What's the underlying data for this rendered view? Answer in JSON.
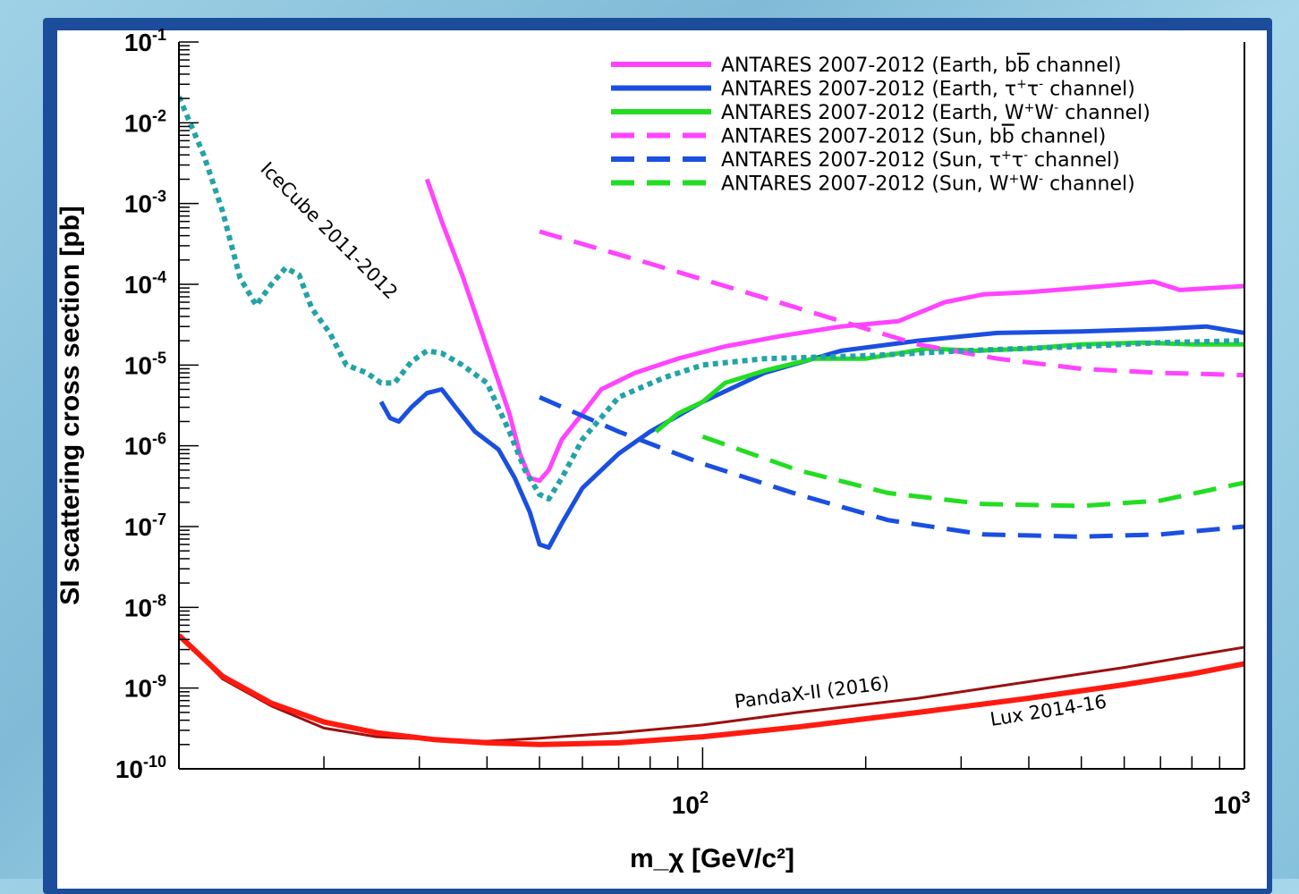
{
  "chart_data": {
    "type": "line",
    "title": "",
    "xlabel": "m_χ [GeV/c²]",
    "ylabel": "SI scattering cross section [pb]",
    "xscale": "log",
    "yscale": "log",
    "xlim": [
      10.8,
      1000
    ],
    "ylim": [
      1e-10,
      0.1
    ],
    "x_tick_labels": [
      {
        "value": 100,
        "base": "10",
        "exp": "2"
      },
      {
        "value": 1000,
        "base": "10",
        "exp": "3"
      }
    ],
    "y_tick_labels": [
      {
        "value": 0.1,
        "base": "10",
        "exp": "-1"
      },
      {
        "value": 0.01,
        "base": "10",
        "exp": "-2"
      },
      {
        "value": 0.001,
        "base": "10",
        "exp": "-3"
      },
      {
        "value": 0.0001,
        "base": "10",
        "exp": "-4"
      },
      {
        "value": 1e-05,
        "base": "10",
        "exp": "-5"
      },
      {
        "value": 1e-06,
        "base": "10",
        "exp": "-6"
      },
      {
        "value": 1e-07,
        "base": "10",
        "exp": "-7"
      },
      {
        "value": 1e-08,
        "base": "10",
        "exp": "-8"
      },
      {
        "value": 1e-09,
        "base": "10",
        "exp": "-9"
      },
      {
        "value": 1e-10,
        "base": "10",
        "exp": "-10"
      }
    ],
    "legend_position": "top-right",
    "grid": false,
    "series": [
      {
        "name": "ANTARES 2007-2012 (Earth, bb̄ channel)",
        "color": "#ff44ff",
        "dash": "solid",
        "width": 5,
        "legend": true,
        "points": [
          [
            31,
            0.002
          ],
          [
            33,
            0.0006
          ],
          [
            36,
            0.00013
          ],
          [
            38.5,
            3.5e-05
          ],
          [
            41,
            1e-05
          ],
          [
            44,
            2.5e-06
          ],
          [
            46,
            8e-07
          ],
          [
            48,
            4e-07
          ],
          [
            50,
            3.7e-07
          ],
          [
            52,
            5e-07
          ],
          [
            55,
            1.2e-06
          ],
          [
            60,
            2.5e-06
          ],
          [
            65,
            5e-06
          ],
          [
            75,
            8e-06
          ],
          [
            90,
            1.2e-05
          ],
          [
            110,
            1.7e-05
          ],
          [
            140,
            2.3e-05
          ],
          [
            180,
            3e-05
          ],
          [
            230,
            3.5e-05
          ],
          [
            280,
            6e-05
          ],
          [
            330,
            7.5e-05
          ],
          [
            400,
            8e-05
          ],
          [
            500,
            9e-05
          ],
          [
            600,
            0.0001
          ],
          [
            680,
            0.000108
          ],
          [
            760,
            8.5e-05
          ],
          [
            1000,
            9.5e-05
          ]
        ]
      },
      {
        "name": "ANTARES 2007-2012 (Earth, τ⁺τ⁻ channel)",
        "color": "#1a4fe0",
        "dash": "solid",
        "width": 5,
        "legend": true,
        "points": [
          [
            25.5,
            3.5e-06
          ],
          [
            26.5,
            2.2e-06
          ],
          [
            27.5,
            2e-06
          ],
          [
            29,
            3e-06
          ],
          [
            31,
            4.5e-06
          ],
          [
            33,
            5e-06
          ],
          [
            35,
            3e-06
          ],
          [
            38,
            1.5e-06
          ],
          [
            42,
            9e-07
          ],
          [
            45,
            4e-07
          ],
          [
            48,
            1.5e-07
          ],
          [
            50,
            6e-08
          ],
          [
            52,
            5.5e-08
          ],
          [
            55,
            1.1e-07
          ],
          [
            60,
            3e-07
          ],
          [
            70,
            8e-07
          ],
          [
            80,
            1.5e-06
          ],
          [
            100,
            3.5e-06
          ],
          [
            130,
            8e-06
          ],
          [
            180,
            1.5e-05
          ],
          [
            250,
            2e-05
          ],
          [
            350,
            2.5e-05
          ],
          [
            500,
            2.6e-05
          ],
          [
            700,
            2.8e-05
          ],
          [
            850,
            3e-05
          ],
          [
            1000,
            2.5e-05
          ]
        ]
      },
      {
        "name": "ANTARES 2007-2012 (Earth, W⁺W⁻ channel)",
        "color": "#22dd22",
        "dash": "solid",
        "width": 5,
        "legend": true,
        "points": [
          [
            82,
            1.5e-06
          ],
          [
            90,
            2.5e-06
          ],
          [
            100,
            3.5e-06
          ],
          [
            110,
            6e-06
          ],
          [
            130,
            8.5e-06
          ],
          [
            160,
            1.2e-05
          ],
          [
            200,
            1.2e-05
          ],
          [
            260,
            1.6e-05
          ],
          [
            320,
            1.5e-05
          ],
          [
            400,
            1.6e-05
          ],
          [
            500,
            1.8e-05
          ],
          [
            650,
            1.9e-05
          ],
          [
            800,
            1.8e-05
          ],
          [
            1000,
            1.8e-05
          ]
        ]
      },
      {
        "name": "ANTARES 2007-2012 (Sun, bb̄ channel)",
        "color": "#ff44ff",
        "dash": "dashed",
        "width": 5,
        "legend": true,
        "points": [
          [
            50,
            0.00045
          ],
          [
            80,
            0.00018
          ],
          [
            120,
            8e-05
          ],
          [
            180,
            3.5e-05
          ],
          [
            250,
            1.8e-05
          ],
          [
            350,
            1.2e-05
          ],
          [
            500,
            9e-06
          ],
          [
            700,
            8e-06
          ],
          [
            1000,
            7.5e-06
          ]
        ]
      },
      {
        "name": "ANTARES 2007-2012 (Sun, τ⁺τ⁻ channel)",
        "color": "#1a4fe0",
        "dash": "dashed",
        "width": 5,
        "legend": true,
        "points": [
          [
            50,
            4e-06
          ],
          [
            70,
            1.5e-06
          ],
          [
            100,
            6e-07
          ],
          [
            150,
            2.5e-07
          ],
          [
            220,
            1.2e-07
          ],
          [
            330,
            8e-08
          ],
          [
            500,
            7.5e-08
          ],
          [
            700,
            8e-08
          ],
          [
            1000,
            1e-07
          ]
        ]
      },
      {
        "name": "ANTARES 2007-2012 (Sun, W⁺W⁻ channel)",
        "color": "#22dd22",
        "dash": "dashed",
        "width": 5,
        "legend": true,
        "points": [
          [
            100,
            1.3e-06
          ],
          [
            150,
            5e-07
          ],
          [
            220,
            2.6e-07
          ],
          [
            330,
            1.9e-07
          ],
          [
            500,
            1.8e-07
          ],
          [
            700,
            2.1e-07
          ],
          [
            1000,
            3.5e-07
          ]
        ]
      },
      {
        "name": "IceCube 2011-2012",
        "color": "#23a3a8",
        "dash": "dotted",
        "width": 6,
        "legend": false,
        "points": [
          [
            10.8,
            0.021
          ],
          [
            12,
            0.004
          ],
          [
            13,
            0.0008
          ],
          [
            14,
            0.00012
          ],
          [
            15,
            5.5e-05
          ],
          [
            16,
            0.0001
          ],
          [
            17,
            0.00016
          ],
          [
            18,
            0.00013
          ],
          [
            19,
            5e-05
          ],
          [
            20.5,
            2.5e-05
          ],
          [
            22,
            1e-05
          ],
          [
            24,
            8e-06
          ],
          [
            25.5,
            6e-06
          ],
          [
            27,
            6e-06
          ],
          [
            29,
            1.1e-05
          ],
          [
            31,
            1.5e-05
          ],
          [
            33,
            1.4e-05
          ],
          [
            36,
            1e-05
          ],
          [
            40,
            6e-06
          ],
          [
            44,
            1.5e-06
          ],
          [
            47,
            5e-07
          ],
          [
            50,
            2.5e-07
          ],
          [
            52,
            2.2e-07
          ],
          [
            55,
            4e-07
          ],
          [
            60,
            1.2e-06
          ],
          [
            70,
            4e-06
          ],
          [
            85,
            7e-06
          ],
          [
            100,
            1e-05
          ],
          [
            130,
            1.2e-05
          ],
          [
            200,
            1.3e-05
          ],
          [
            300,
            1.5e-05
          ],
          [
            500,
            1.7e-05
          ],
          [
            700,
            1.9e-05
          ],
          [
            1000,
            2e-05
          ]
        ]
      },
      {
        "name": "PandaX-II (2016)",
        "color": "#9b1010",
        "dash": "solid",
        "width": 3,
        "legend": false,
        "points": [
          [
            10.8,
            4.5e-09
          ],
          [
            13,
            1.3e-09
          ],
          [
            16,
            6e-10
          ],
          [
            20,
            3.2e-10
          ],
          [
            25,
            2.5e-10
          ],
          [
            32,
            2.3e-10
          ],
          [
            40,
            2.2e-10
          ],
          [
            50,
            2.4e-10
          ],
          [
            70,
            2.8e-10
          ],
          [
            100,
            3.5e-10
          ],
          [
            150,
            5e-10
          ],
          [
            250,
            7.5e-10
          ],
          [
            400,
            1.2e-09
          ],
          [
            600,
            1.8e-09
          ],
          [
            800,
            2.5e-09
          ],
          [
            1000,
            3.2e-09
          ]
        ]
      },
      {
        "name": "Lux 2014-16",
        "color": "#ff1a10",
        "dash": "solid",
        "width": 6,
        "legend": false,
        "points": [
          [
            10.8,
            4.5e-09
          ],
          [
            13,
            1.4e-09
          ],
          [
            16,
            6.5e-10
          ],
          [
            20,
            3.8e-10
          ],
          [
            25,
            2.8e-10
          ],
          [
            32,
            2.3e-10
          ],
          [
            40,
            2.1e-10
          ],
          [
            50,
            2e-10
          ],
          [
            70,
            2.1e-10
          ],
          [
            100,
            2.5e-10
          ],
          [
            150,
            3.3e-10
          ],
          [
            250,
            5e-10
          ],
          [
            400,
            7.5e-10
          ],
          [
            600,
            1.1e-09
          ],
          [
            800,
            1.5e-09
          ],
          [
            1000,
            2e-09
          ]
        ]
      }
    ],
    "legend": [
      {
        "prefix": "ANTARES 2007-2012 (Earth, b",
        "bbar": "b",
        "sup1": "",
        "mid": "",
        "sup2": "",
        "suffix": " channel)"
      },
      {
        "prefix": "ANTARES 2007-2012 (Earth, ",
        "bbar": "",
        "sup1": "+",
        "mid": "τ",
        "sup2": "-",
        "suffix": " channel)",
        "lead": "τ"
      },
      {
        "prefix": "ANTARES 2007-2012 (Earth, ",
        "bbar": "",
        "sup1": "+",
        "mid": "W",
        "sup2": "-",
        "suffix": " channel)",
        "lead": "W"
      },
      {
        "prefix": "ANTARES 2007-2012 (Sun, b",
        "bbar": "b",
        "sup1": "",
        "mid": "",
        "sup2": "",
        "suffix": " channel)"
      },
      {
        "prefix": "ANTARES 2007-2012 (Sun, ",
        "bbar": "",
        "sup1": "+",
        "mid": "τ",
        "sup2": "-",
        "suffix": " channel)",
        "lead": "τ"
      },
      {
        "prefix": "ANTARES 2007-2012 (Sun, ",
        "bbar": "",
        "sup1": "+",
        "mid": "W",
        "sup2": "-",
        "suffix": " channel)",
        "lead": "W"
      }
    ],
    "annotations": [
      {
        "text": "IceCube 2011-2012",
        "series": "IceCube 2011-2012"
      },
      {
        "text": "PandaX-II (2016)",
        "series": "PandaX-II (2016)"
      },
      {
        "text": "Lux 2014-16",
        "series": "Lux 2014-16"
      }
    ]
  }
}
